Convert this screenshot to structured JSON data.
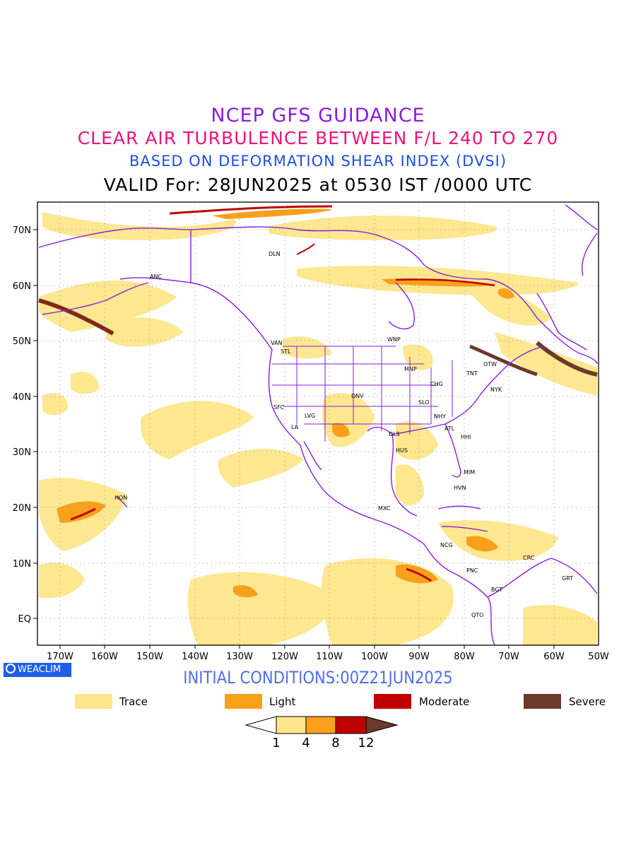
{
  "titles": {
    "line1": "NCEP GFS GUIDANCE",
    "line2": "CLEAR AIR TURBULENCE BETWEEN F/L 240 TO 270",
    "line3": "BASED ON DEFORMATION SHEAR INDEX (DVSI)",
    "line4": "VALID For: 28JUN2025 at 0530 IST /0000 UTC"
  },
  "colors": {
    "line1": "#8a1be0",
    "line2": "#e8157a",
    "line3": "#1f4fe0",
    "boundaries": "#8a1be0",
    "trace": "#fde68a",
    "light": "#f9a01b",
    "moderate": "#c00000",
    "severe": "#6b3a2a",
    "logo_bg": "#1f5fe8",
    "init": "#4f6ee8"
  },
  "map": {
    "lat_labels": [
      "70N",
      "60N",
      "50N",
      "40N",
      "30N",
      "20N",
      "10N",
      "EQ"
    ],
    "lon_labels": [
      "170W",
      "160W",
      "150W",
      "140W",
      "130W",
      "120W",
      "110W",
      "100W",
      "90W",
      "80W",
      "70W",
      "60W",
      "50W"
    ],
    "cities": [
      "ANC",
      "DLN",
      "VAN",
      "STL",
      "WNP",
      "MNP",
      "TNT",
      "OTW",
      "CHG",
      "NYK",
      "DNV",
      "SLO",
      "SFC",
      "LVG",
      "LA",
      "NHY",
      "ATL",
      "DLS",
      "HHI",
      "HUS",
      "MIM",
      "HVN",
      "HON",
      "MXC",
      "NCG",
      "CRC",
      "PNC",
      "GRT",
      "BGT",
      "QTO"
    ]
  },
  "logo": "WEACLIM",
  "initial_conditions": "INITIAL CONDITIONS:00Z21JUN2025",
  "legend": [
    {
      "label": "Trace",
      "color": "#fde68a"
    },
    {
      "label": "Light",
      "color": "#f9a01b"
    },
    {
      "label": "Moderate",
      "color": "#c00000"
    },
    {
      "label": "Severe",
      "color": "#6b3a2a"
    }
  ],
  "colorbar": {
    "ticks": [
      "1",
      "4",
      "8",
      "12"
    ]
  }
}
